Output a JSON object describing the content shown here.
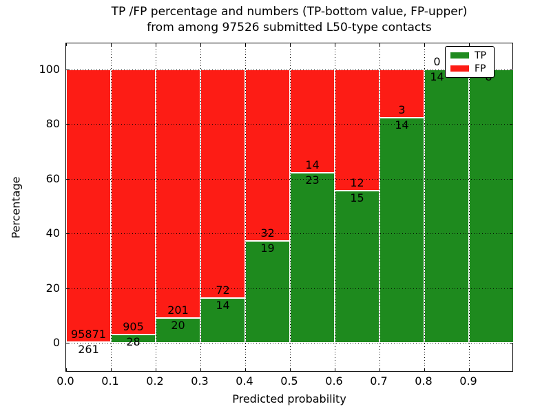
{
  "title": {
    "line1": "TP /FP percentage and numbers (TP-bottom value, FP-upper)",
    "line2": "from among 97526 submitted L50-type contacts"
  },
  "axes": {
    "xlabel": "Predicted probability",
    "ylabel": "Percentage",
    "x_tick_labels": [
      "0.0",
      "0.1",
      "0.2",
      "0.3",
      "0.4",
      "0.5",
      "0.6",
      "0.7",
      "0.8",
      "0.9"
    ],
    "y_tick_labels": [
      "0",
      "20",
      "40",
      "60",
      "80",
      "100"
    ]
  },
  "legend": {
    "position": "upper-right",
    "items": [
      {
        "label": "TP",
        "color": "#1e8a1e"
      },
      {
        "label": "FP",
        "color": "#fd1c15"
      }
    ]
  },
  "chart_data": {
    "type": "bar",
    "subtype": "stacked-100-percent",
    "title": "TP /FP percentage and numbers (TP-bottom value, FP-upper) from among 97526 submitted L50-type contacts",
    "xlabel": "Predicted probability",
    "ylabel": "Percentage",
    "total_contacts": 97526,
    "bin_edges": [
      0.0,
      0.1,
      0.2,
      0.3,
      0.4,
      0.5,
      0.6,
      0.7,
      0.8,
      0.9,
      1.0
    ],
    "x_bins": [
      "0.0-0.1",
      "0.1-0.2",
      "0.2-0.3",
      "0.3-0.4",
      "0.4-0.5",
      "0.5-0.6",
      "0.6-0.7",
      "0.7-0.8",
      "0.8-0.9",
      "0.9-1.0"
    ],
    "series": [
      {
        "name": "TP",
        "color": "#1e8a1e",
        "counts": [
          261,
          28,
          20,
          14,
          19,
          23,
          15,
          14,
          14,
          8
        ]
      },
      {
        "name": "FP",
        "color": "#fd1c15",
        "counts": [
          95871,
          905,
          201,
          72,
          32,
          14,
          12,
          3,
          0,
          0
        ]
      }
    ],
    "tp_percent": [
      0.27,
      3.0,
      9.05,
      16.28,
      37.25,
      62.16,
      55.56,
      82.35,
      100.0,
      100.0
    ],
    "y_ticks": [
      0,
      20,
      40,
      60,
      80,
      100
    ],
    "ylim": [
      -11,
      110
    ],
    "grid": "dotted-black",
    "legend_position": "upper right",
    "annotation_dx": {
      "8": -14,
      "9": -4
    }
  }
}
